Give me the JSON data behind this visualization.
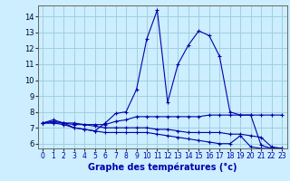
{
  "xlabel": "Graphe des températures (°c)",
  "x_ticks": [
    0,
    1,
    2,
    3,
    4,
    5,
    6,
    7,
    8,
    9,
    10,
    11,
    12,
    13,
    14,
    15,
    16,
    17,
    18,
    19,
    20,
    21,
    22,
    23
  ],
  "ylim": [
    5.7,
    14.7
  ],
  "xlim": [
    -0.5,
    23.5
  ],
  "yticks": [
    6,
    7,
    8,
    9,
    10,
    11,
    12,
    13,
    14
  ],
  "background_color": "#cceeff",
  "grid_color": "#99ccdd",
  "line_color": "#0000aa",
  "lines": [
    [
      7.3,
      7.5,
      7.3,
      7.0,
      6.9,
      6.8,
      7.3,
      7.9,
      8.0,
      9.4,
      12.6,
      14.4,
      8.6,
      11.0,
      12.2,
      13.1,
      12.8,
      11.5,
      8.0,
      7.8,
      7.8,
      5.9,
      5.7,
      5.7
    ],
    [
      7.3,
      7.4,
      7.3,
      7.2,
      7.2,
      7.2,
      7.2,
      7.4,
      7.5,
      7.7,
      7.7,
      7.7,
      7.7,
      7.7,
      7.7,
      7.7,
      7.8,
      7.8,
      7.8,
      7.8,
      7.8,
      7.8,
      7.8,
      7.8
    ],
    [
      7.3,
      7.3,
      7.3,
      7.3,
      7.2,
      7.1,
      7.0,
      7.0,
      7.0,
      7.0,
      7.0,
      6.9,
      6.9,
      6.8,
      6.7,
      6.7,
      6.7,
      6.7,
      6.6,
      6.6,
      6.5,
      6.4,
      5.8,
      5.7
    ],
    [
      7.3,
      7.3,
      7.2,
      7.0,
      6.9,
      6.8,
      6.7,
      6.7,
      6.7,
      6.7,
      6.7,
      6.6,
      6.5,
      6.4,
      6.3,
      6.2,
      6.1,
      6.0,
      6.0,
      6.5,
      5.8,
      5.7,
      5.7,
      5.7
    ]
  ],
  "xlabel_fontsize": 7,
  "tick_fontsize": 5.5,
  "ytick_fontsize": 6
}
